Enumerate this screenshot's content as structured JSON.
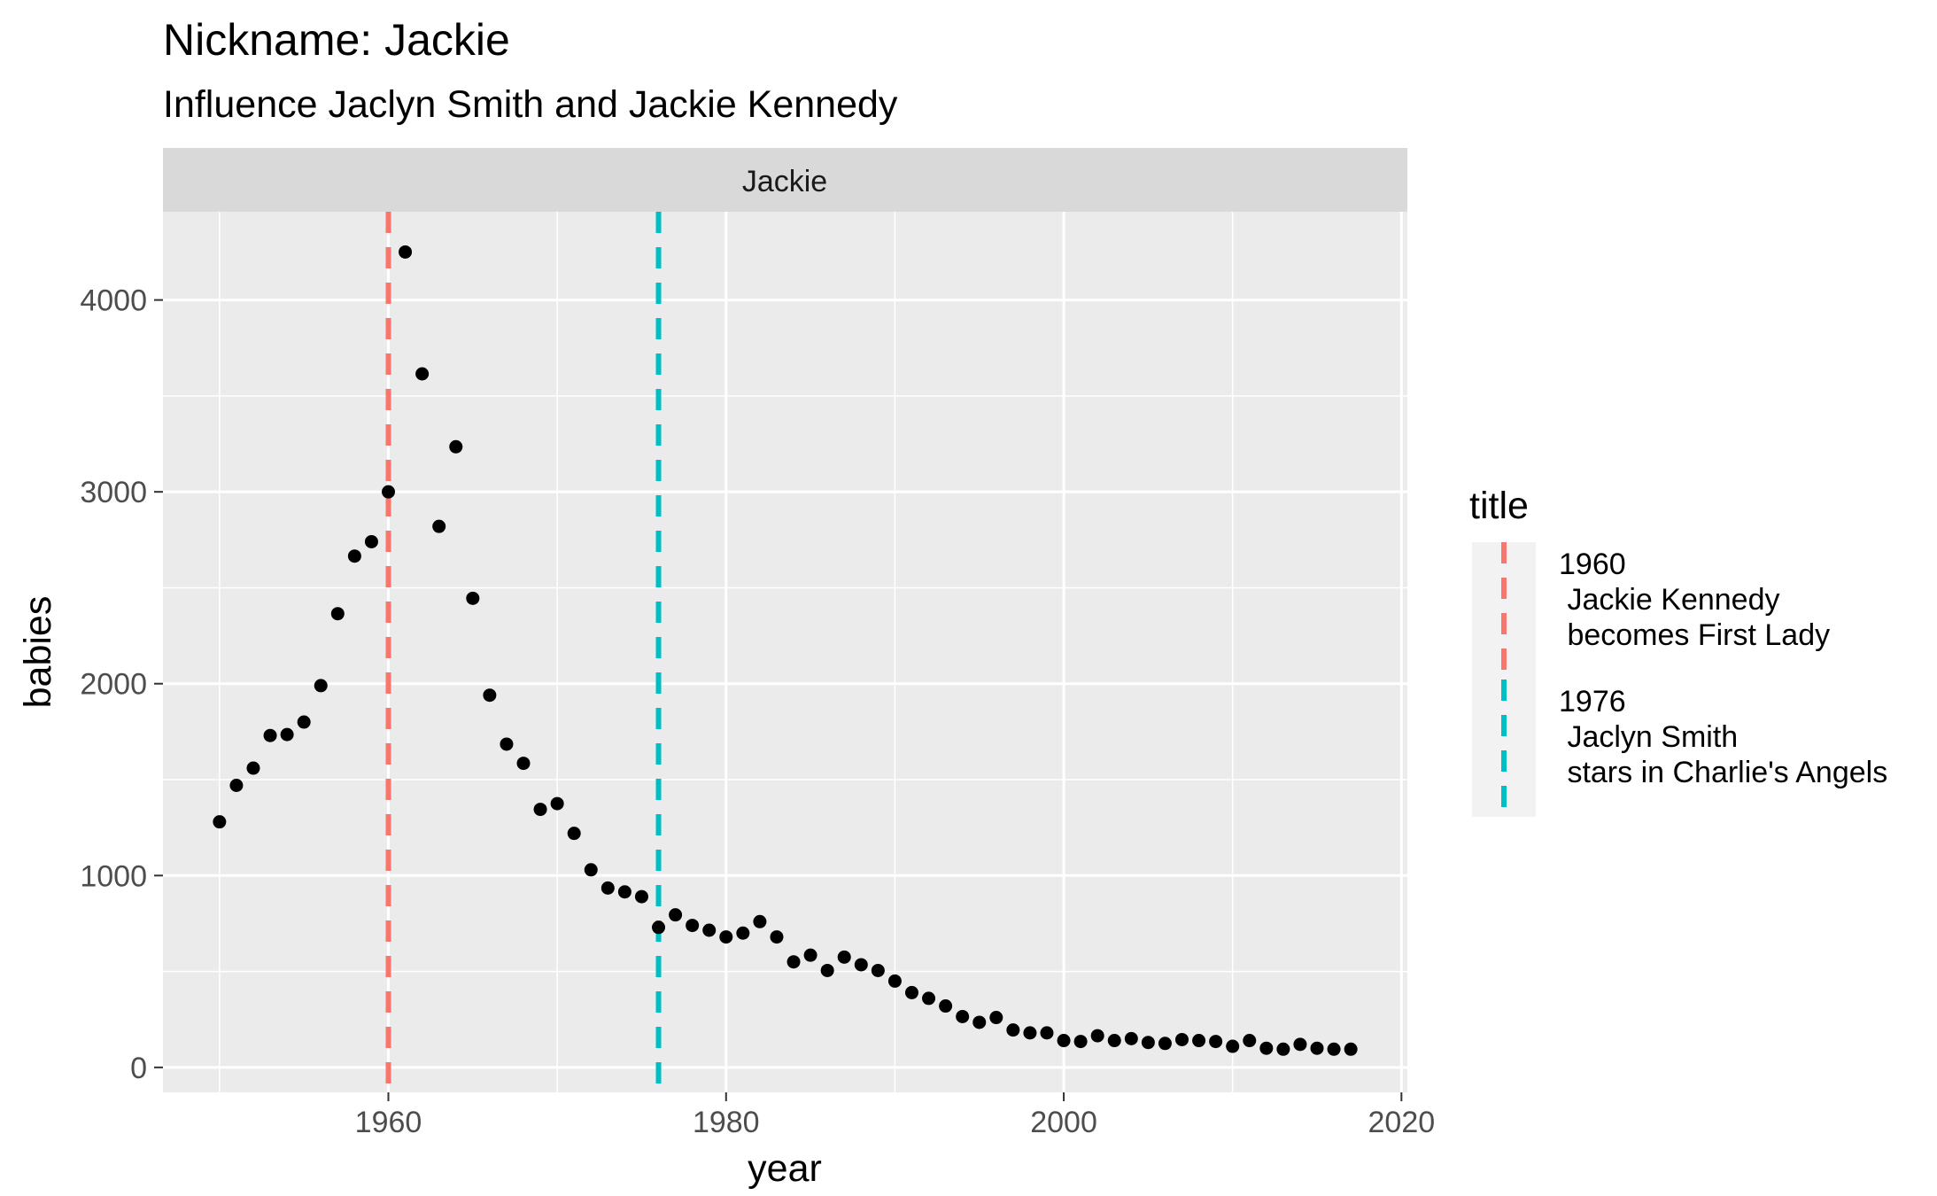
{
  "chart_data": {
    "type": "scatter",
    "title": "Nickname: Jackie",
    "subtitle": "Influence Jaclyn Smith and Jackie Kennedy",
    "facet_label": "Jackie",
    "xlabel": "year",
    "ylabel": "babies",
    "xlim": [
      1946.65,
      2020.35
    ],
    "ylim": [
      -130,
      4460
    ],
    "x_ticks": [
      1960,
      1980,
      2000,
      2020
    ],
    "y_ticks": [
      0,
      1000,
      2000,
      3000,
      4000
    ],
    "grid": true,
    "legend_position": "right",
    "series": [
      {
        "color": "#000000",
        "x": [
          1950,
          1951,
          1952,
          1953,
          1954,
          1955,
          1956,
          1957,
          1958,
          1959,
          1960,
          1961,
          1962,
          1963,
          1964,
          1965,
          1966,
          1967,
          1968,
          1969,
          1970,
          1971,
          1972,
          1973,
          1974,
          1975,
          1976,
          1977,
          1978,
          1979,
          1980,
          1981,
          1982,
          1983,
          1984,
          1985,
          1986,
          1987,
          1988,
          1989,
          1990,
          1991,
          1992,
          1993,
          1994,
          1995,
          1996,
          1997,
          1998,
          1999,
          2000,
          2001,
          2002,
          2003,
          2004,
          2005,
          2006,
          2007,
          2008,
          2009,
          2010,
          2011,
          2012,
          2013,
          2014,
          2015,
          2016,
          2017
        ],
        "y": [
          1280,
          1470,
          1560,
          1730,
          1735,
          1800,
          1990,
          2365,
          2665,
          2740,
          3000,
          4250,
          3615,
          2820,
          3235,
          2445,
          1940,
          1685,
          1585,
          1345,
          1375,
          1220,
          1030,
          935,
          915,
          890,
          730,
          795,
          740,
          715,
          680,
          700,
          760,
          680,
          550,
          585,
          505,
          575,
          535,
          505,
          450,
          390,
          360,
          320,
          265,
          235,
          260,
          195,
          180,
          180,
          140,
          135,
          165,
          140,
          150,
          130,
          125,
          145,
          140,
          135,
          110,
          140,
          100,
          95,
          120,
          100,
          95,
          95
        ]
      }
    ],
    "vlines": [
      {
        "x": 1960,
        "color": "#F8766D",
        "label": "1960\n Jackie Kennedy\n becomes First Lady"
      },
      {
        "x": 1976,
        "color": "#00BFC4",
        "label": "1976\n Jaclyn Smith\n stars in Charlie's Angels"
      }
    ],
    "legend": {
      "title": "title",
      "entries": [
        {
          "lines": [
            "1960",
            " Jackie Kennedy",
            " becomes First Lady"
          ],
          "color": "#F8766D"
        },
        {
          "lines": [
            "1976",
            " Jaclyn Smith",
            " stars in Charlie's Angels"
          ],
          "color": "#00BFC4"
        }
      ]
    },
    "colors": {
      "panel_background": "#EBEBEB",
      "strip_background": "#D9D9D9",
      "grid": "#FFFFFF",
      "legend_key_background": "#F2F2F2"
    }
  }
}
